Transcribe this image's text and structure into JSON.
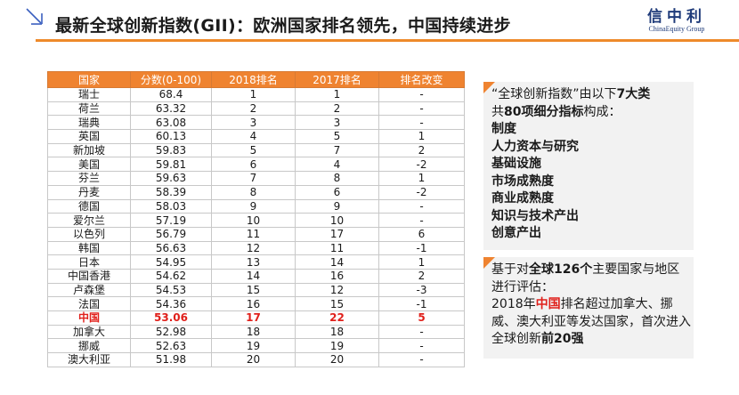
{
  "header": {
    "title": "最新全球创新指数(GII)：欧洲国家排名领先，中国持续进步",
    "logo_cn": "信中利",
    "logo_en": "ChinaEquity Group",
    "accent_color": "#ee8a2a"
  },
  "table": {
    "columns": [
      "国家",
      "分数(0-100)",
      "2018排名",
      "2017排名",
      "排名改变"
    ],
    "rows": [
      {
        "country": "瑞士",
        "score": "68.4",
        "rank2018": "1",
        "rank2017": "1",
        "change": "-"
      },
      {
        "country": "荷兰",
        "score": "63.32",
        "rank2018": "2",
        "rank2017": "2",
        "change": "-"
      },
      {
        "country": "瑞典",
        "score": "63.08",
        "rank2018": "3",
        "rank2017": "3",
        "change": "-"
      },
      {
        "country": "英国",
        "score": "60.13",
        "rank2018": "4",
        "rank2017": "5",
        "change": "1"
      },
      {
        "country": "新加坡",
        "score": "59.83",
        "rank2018": "5",
        "rank2017": "7",
        "change": "2"
      },
      {
        "country": "美国",
        "score": "59.81",
        "rank2018": "6",
        "rank2017": "4",
        "change": "-2"
      },
      {
        "country": "芬兰",
        "score": "59.63",
        "rank2018": "7",
        "rank2017": "8",
        "change": "1"
      },
      {
        "country": "丹麦",
        "score": "58.39",
        "rank2018": "8",
        "rank2017": "6",
        "change": "-2"
      },
      {
        "country": "德国",
        "score": "58.03",
        "rank2018": "9",
        "rank2017": "9",
        "change": "-"
      },
      {
        "country": "爱尔兰",
        "score": "57.19",
        "rank2018": "10",
        "rank2017": "10",
        "change": "-"
      },
      {
        "country": "以色列",
        "score": "56.79",
        "rank2018": "11",
        "rank2017": "17",
        "change": "6"
      },
      {
        "country": "韩国",
        "score": "56.63",
        "rank2018": "12",
        "rank2017": "11",
        "change": "-1"
      },
      {
        "country": "日本",
        "score": "54.95",
        "rank2018": "13",
        "rank2017": "14",
        "change": "1"
      },
      {
        "country": "中国香港",
        "score": "54.62",
        "rank2018": "14",
        "rank2017": "16",
        "change": "2"
      },
      {
        "country": "卢森堡",
        "score": "54.53",
        "rank2018": "15",
        "rank2017": "12",
        "change": "-3"
      },
      {
        "country": "法国",
        "score": "54.36",
        "rank2018": "16",
        "rank2017": "15",
        "change": "-1"
      },
      {
        "country": "中国",
        "score": "53.06",
        "rank2018": "17",
        "rank2017": "22",
        "change": "5"
      },
      {
        "country": "加拿大",
        "score": "52.98",
        "rank2018": "18",
        "rank2017": "18",
        "change": "-"
      },
      {
        "country": "挪威",
        "score": "52.63",
        "rank2018": "19",
        "rank2017": "19",
        "change": "-"
      },
      {
        "country": "澳大利亚",
        "score": "51.98",
        "rank2018": "20",
        "rank2017": "20",
        "change": "-"
      }
    ],
    "highlight_country": "中国",
    "highlight_color": "#e0201b"
  },
  "box1": {
    "intro_a": "“全球创新指数”由以下",
    "intro_b": "7大类",
    "intro_c": "共",
    "intro_d": "80项细分指标",
    "intro_e": "构成：",
    "categories": [
      "制度",
      "人力资本与研究",
      "基础设施",
      "市场成熟度",
      "商业成熟度",
      "知识与技术产出",
      "创意产出"
    ]
  },
  "box2": {
    "p1": "基于对",
    "p2": "全球126个",
    "p3": "主要国家与地区进行评估：",
    "p4": "2018年",
    "p5": "中国",
    "p6": "排名超过加拿大、挪威、澳大利亚等发达国家，首次进入全球创新",
    "p7": "前20强"
  }
}
